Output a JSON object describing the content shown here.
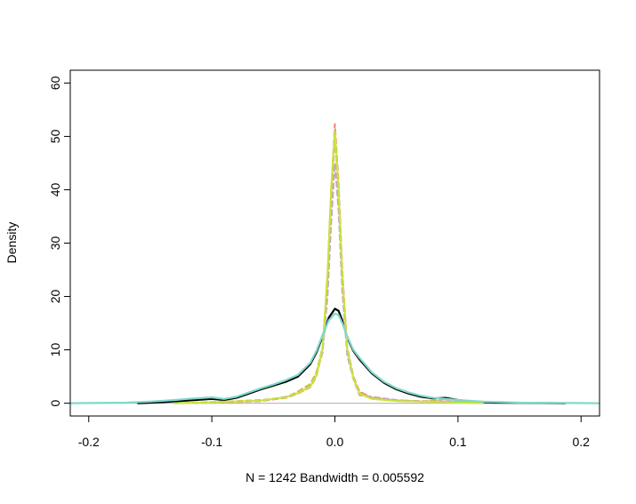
{
  "chart_data": {
    "type": "line",
    "title": "",
    "xlabel": "N = 1242   Bandwidth = 0.005592",
    "ylabel": "Density",
    "xlim": [
      -0.215,
      0.215
    ],
    "ylim": [
      -2.4,
      62.4
    ],
    "x_ticks": [
      -0.2,
      -0.1,
      0.0,
      0.1,
      0.2
    ],
    "x_tick_labels": [
      "-0.2",
      "-0.1",
      "0.0",
      "0.1",
      "0.2"
    ],
    "y_ticks": [
      0,
      10,
      20,
      30,
      40,
      50,
      60
    ],
    "y_tick_labels": [
      "0",
      "10",
      "20",
      "30",
      "40",
      "50",
      "60"
    ],
    "grid": false,
    "legend": "none",
    "baseline": {
      "y": 0,
      "color": "#bdbdbd"
    },
    "series": [
      {
        "color": "#000000",
        "width": 2.2,
        "dash": "",
        "x": [
          -0.16,
          -0.14,
          -0.12,
          -0.1,
          -0.09,
          -0.08,
          -0.07,
          -0.06,
          -0.05,
          -0.04,
          -0.03,
          -0.02,
          -0.015,
          -0.01,
          -0.005,
          0.0,
          0.003,
          0.006,
          0.01,
          0.015,
          0.02,
          0.03,
          0.04,
          0.05,
          0.06,
          0.07,
          0.08,
          0.09,
          0.1,
          0.11,
          0.13,
          0.16,
          0.187
        ],
        "y": [
          0,
          0.2,
          0.5,
          0.8,
          0.6,
          1.0,
          1.8,
          2.6,
          3.3,
          4.0,
          5.0,
          7.3,
          9.5,
          12.5,
          16.0,
          17.7,
          17.3,
          15.5,
          12.3,
          9.8,
          8.2,
          5.6,
          3.8,
          2.6,
          1.8,
          1.2,
          0.9,
          1.0,
          0.6,
          0.3,
          0.1,
          0.05,
          0
        ]
      },
      {
        "color": "#f08080",
        "width": 2.0,
        "dash": "6,4",
        "x": [
          -0.13,
          -0.09,
          -0.06,
          -0.04,
          -0.03,
          -0.02,
          -0.015,
          -0.01,
          -0.006,
          -0.003,
          0.0,
          0.003,
          0.006,
          0.01,
          0.015,
          0.02,
          0.03,
          0.05,
          0.07,
          0.09,
          0.12
        ],
        "y": [
          0,
          0.1,
          0.4,
          1.0,
          1.8,
          3.0,
          5.0,
          10.0,
          24.0,
          40.0,
          52.3,
          41.0,
          25.0,
          10.5,
          5.0,
          2.2,
          1.0,
          0.5,
          0.4,
          0.3,
          0
        ]
      },
      {
        "color": "#c8a2c8",
        "width": 2.0,
        "dash": "6,4",
        "x": [
          -0.13,
          -0.09,
          -0.06,
          -0.04,
          -0.03,
          -0.02,
          -0.015,
          -0.01,
          -0.006,
          -0.003,
          0.0,
          0.003,
          0.006,
          0.01,
          0.015,
          0.02,
          0.03,
          0.05,
          0.07,
          0.09,
          0.12
        ],
        "y": [
          0,
          0.2,
          0.5,
          1.2,
          2.0,
          3.2,
          5.5,
          9.5,
          20.0,
          34.0,
          45.0,
          36.0,
          21.0,
          9.0,
          4.5,
          1.5,
          1.2,
          0.6,
          0.3,
          0.4,
          0
        ]
      },
      {
        "color": "#d4b84a",
        "width": 2.0,
        "dash": "6,4",
        "x": [
          -0.13,
          -0.09,
          -0.06,
          -0.04,
          -0.03,
          -0.02,
          -0.015,
          -0.01,
          -0.006,
          -0.003,
          0.0,
          0.003,
          0.006,
          0.01,
          0.015,
          0.02,
          0.03,
          0.05,
          0.07,
          0.09,
          0.12
        ],
        "y": [
          0,
          0.3,
          0.6,
          1.0,
          2.2,
          3.6,
          5.8,
          10.5,
          23.0,
          38.0,
          50.0,
          39.0,
          23.5,
          10.0,
          4.8,
          2.0,
          0.9,
          0.5,
          0.3,
          0.8,
          0
        ]
      },
      {
        "color": "#c5e63c",
        "width": 2.0,
        "dash": "",
        "x": [
          -0.13,
          -0.09,
          -0.06,
          -0.04,
          -0.03,
          -0.02,
          -0.015,
          -0.01,
          -0.006,
          -0.003,
          0.0,
          0.003,
          0.006,
          0.01,
          0.015,
          0.02,
          0.03,
          0.05,
          0.07,
          0.09,
          0.12
        ],
        "y": [
          0,
          0.2,
          0.5,
          1.1,
          1.9,
          3.1,
          5.2,
          10.2,
          24.5,
          40.5,
          51.0,
          40.0,
          24.0,
          10.2,
          4.6,
          1.8,
          0.8,
          0.4,
          0.3,
          0.2,
          0
        ]
      },
      {
        "color": "#7fd8cc",
        "width": 2.2,
        "dash": "",
        "x": [
          -0.215,
          -0.17,
          -0.15,
          -0.13,
          -0.12,
          -0.1,
          -0.09,
          -0.08,
          -0.07,
          -0.06,
          -0.05,
          -0.04,
          -0.03,
          -0.02,
          -0.015,
          -0.01,
          -0.005,
          0.0,
          0.003,
          0.006,
          0.01,
          0.015,
          0.02,
          0.03,
          0.04,
          0.05,
          0.06,
          0.07,
          0.08,
          0.1,
          0.12,
          0.15,
          0.215
        ],
        "y": [
          0,
          0.1,
          0.3,
          0.6,
          0.8,
          1.1,
          0.8,
          1.2,
          2.0,
          2.8,
          3.5,
          4.3,
          5.3,
          7.6,
          9.8,
          12.8,
          15.5,
          16.8,
          16.5,
          15.0,
          12.5,
          10.0,
          8.5,
          5.8,
          4.0,
          2.8,
          2.0,
          1.4,
          1.0,
          0.6,
          0.3,
          0.1,
          0
        ]
      }
    ]
  }
}
